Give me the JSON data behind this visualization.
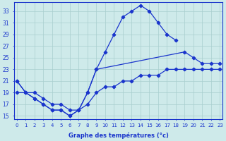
{
  "xlabel": "Graphe des températures (°c)",
  "background_color": "#ceeaea",
  "line_color": "#1a35cc",
  "grid_color": "#a8cece",
  "yticks": [
    15,
    17,
    19,
    21,
    23,
    25,
    27,
    29,
    31,
    33
  ],
  "xticks": [
    0,
    1,
    2,
    3,
    4,
    5,
    6,
    7,
    8,
    9,
    10,
    11,
    12,
    13,
    14,
    15,
    16,
    17,
    18,
    19,
    20,
    21,
    22,
    23
  ],
  "xlim": [
    -0.3,
    23.3
  ],
  "ylim": [
    14.5,
    34.5
  ],
  "line1_x": [
    0,
    1,
    2,
    3,
    4,
    5,
    6,
    7,
    8,
    9,
    10,
    11,
    12,
    13,
    14,
    15,
    16,
    17,
    18
  ],
  "line1_y": [
    21,
    19,
    18,
    17,
    16,
    16,
    15,
    16,
    19,
    23,
    26,
    29,
    32,
    33,
    34,
    33,
    31,
    29,
    28
  ],
  "line2_x": [
    0,
    1,
    2,
    3,
    4,
    5,
    6,
    7,
    8,
    9,
    19,
    20,
    21,
    22,
    23
  ],
  "line2_y": [
    21,
    19,
    18,
    17,
    16,
    16,
    15,
    16,
    19,
    23,
    26,
    25,
    24,
    24,
    24
  ],
  "line3_x": [
    0,
    1,
    2,
    3,
    4,
    5,
    6,
    7,
    8,
    9,
    10,
    11,
    12,
    13,
    14,
    15,
    16,
    17,
    18,
    19,
    20,
    21,
    22,
    23
  ],
  "line3_y": [
    19,
    19,
    19,
    18,
    17,
    17,
    16,
    16,
    17,
    19,
    20,
    20,
    21,
    21,
    22,
    22,
    22,
    23,
    23,
    23,
    23,
    23,
    23,
    23
  ]
}
